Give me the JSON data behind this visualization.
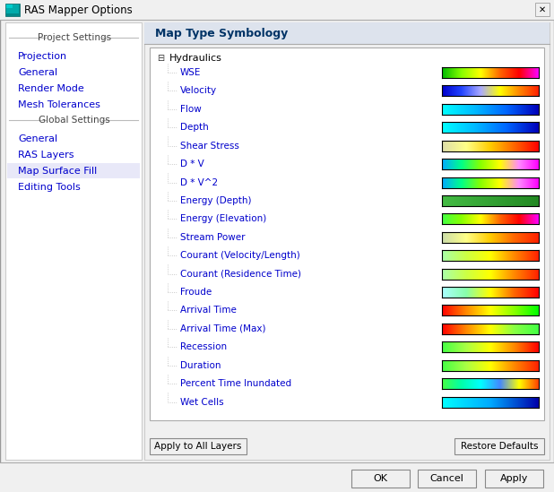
{
  "title": "RAS Mapper Options",
  "bg_color": "#f0f0f0",
  "titlebar_bg": "#f0f0f0",
  "left_panel_bg": "#ffffff",
  "right_panel_bg": "#ffffff",
  "right_title": "Map Type Symbology",
  "tree_root": "Hydraulics",
  "tree_items": [
    "WSE",
    "Velocity",
    "Flow",
    "Depth",
    "Shear Stress",
    "D * V",
    "D * V^2",
    "Energy (Depth)",
    "Energy (Elevation)",
    "Stream Power",
    "Courant (Velocity/Length)",
    "Courant (Residence Time)",
    "Froude",
    "Arrival Time",
    "Arrival Time (Max)",
    "Recession",
    "Duration",
    "Percent Time Inundated",
    "Wet Cells"
  ],
  "colormaps": [
    [
      "#00bb00",
      "#88ff00",
      "#ffff00",
      "#ff6600",
      "#ff0000",
      "#ff00ff"
    ],
    [
      "#0000cc",
      "#2244ff",
      "#aaaaff",
      "#ffff00",
      "#ff8800",
      "#ff2200"
    ],
    [
      "#00ffff",
      "#00bbff",
      "#0066ff",
      "#0000bb"
    ],
    [
      "#00ffff",
      "#00bbff",
      "#0066ff",
      "#0000bb"
    ],
    [
      "#ddddaa",
      "#ffff88",
      "#ffcc00",
      "#ff6600",
      "#ff0000"
    ],
    [
      "#00aaff",
      "#00ff88",
      "#88ff00",
      "#ffff00",
      "#ff88ff",
      "#ff00ff"
    ],
    [
      "#00aaff",
      "#00ff88",
      "#88ff00",
      "#ffff00",
      "#ff88ff",
      "#ff00ff"
    ],
    [
      "#44bb44",
      "#228822"
    ],
    [
      "#44ff44",
      "#88ff00",
      "#ffff00",
      "#ff6600",
      "#ff0000",
      "#ff00ff"
    ],
    [
      "#ccddaa",
      "#ffff88",
      "#ffcc00",
      "#ff6600",
      "#ff2200"
    ],
    [
      "#aaffaa",
      "#ccff44",
      "#ffff00",
      "#ff8800",
      "#ff2200"
    ],
    [
      "#aaffaa",
      "#ccff44",
      "#ffff00",
      "#ff8800",
      "#ff2200"
    ],
    [
      "#aaffff",
      "#88ffaa",
      "#ffff00",
      "#ff6600",
      "#ff0000"
    ],
    [
      "#ff0000",
      "#ff8800",
      "#ffff00",
      "#88ff00",
      "#00ff00"
    ],
    [
      "#ff0000",
      "#ff8800",
      "#ffff00",
      "#88ff44",
      "#44ff44"
    ],
    [
      "#44ff44",
      "#aaff44",
      "#ffff00",
      "#ff8800",
      "#ff0000"
    ],
    [
      "#44ff44",
      "#aaff44",
      "#ffff00",
      "#ff8800",
      "#ff2200"
    ],
    [
      "#44ff44",
      "#00ffaa",
      "#00ffff",
      "#4488ff",
      "#ffff00",
      "#ff4400"
    ],
    [
      "#00ffff",
      "#00aaff",
      "#0000aa"
    ]
  ],
  "left_items": [
    {
      "text": "Project Settings",
      "type": "header"
    },
    {
      "text": "Projection",
      "type": "link"
    },
    {
      "text": "General",
      "type": "link"
    },
    {
      "text": "Render Mode",
      "type": "link"
    },
    {
      "text": "Mesh Tolerances",
      "type": "link"
    },
    {
      "text": "Global Settings",
      "type": "header"
    },
    {
      "text": "General",
      "type": "link"
    },
    {
      "text": "RAS Layers",
      "type": "link"
    },
    {
      "text": "Map Surface Fill",
      "type": "selected"
    },
    {
      "text": "Editing Tools",
      "type": "link"
    }
  ],
  "bottom_buttons": [
    "OK",
    "Cancel",
    "Apply"
  ],
  "action_buttons": [
    "Apply to All Layers",
    "Restore Defaults"
  ],
  "link_color": "#0000cc",
  "selected_bg": "#e8e8f8",
  "header_color": "#444444",
  "text_color": "#000000"
}
